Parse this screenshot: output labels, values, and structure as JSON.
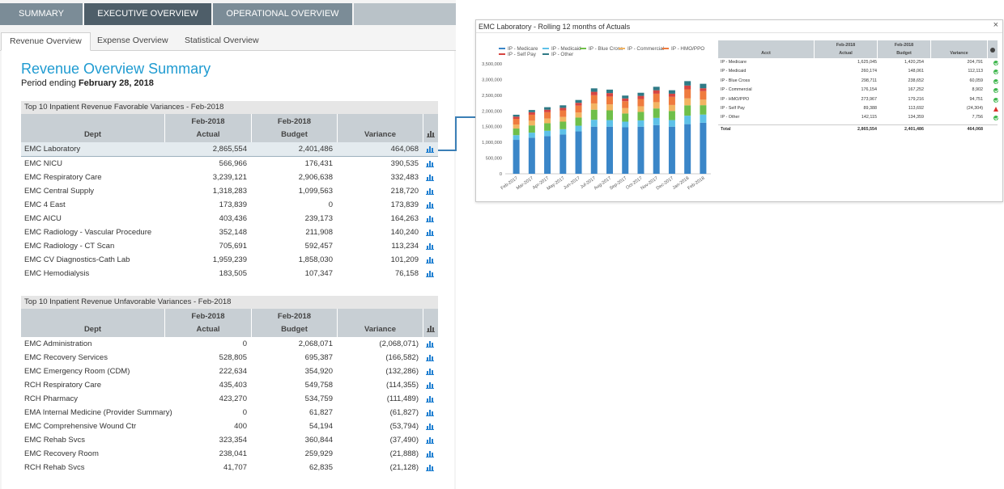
{
  "top_nav": {
    "tabs": [
      "SUMMARY",
      "EXECUTIVE OVERVIEW",
      "OPERATIONAL OVERVIEW",
      ""
    ]
  },
  "sub_nav": {
    "tabs": [
      "Revenue Overview",
      "Expense Overview",
      "Statistical Overview"
    ]
  },
  "summary": {
    "title": "Revenue Overview Summary",
    "period_label": "Period ending",
    "period_value": "February 28, 2018"
  },
  "table_columns": {
    "dept": "Dept",
    "actual_top": "Feb-2018",
    "actual": "Actual",
    "budget_top": "Feb-2018",
    "budget": "Budget",
    "variance": "Variance"
  },
  "favorable": {
    "heading": "Top 10 Inpatient Revenue Favorable Variances - Feb-2018",
    "rows": [
      {
        "dept": "EMC Laboratory",
        "actual": "2,865,554",
        "budget": "2,401,486",
        "variance": "464,068"
      },
      {
        "dept": "EMC NICU",
        "actual": "566,966",
        "budget": "176,431",
        "variance": "390,535"
      },
      {
        "dept": "EMC Respiratory Care",
        "actual": "3,239,121",
        "budget": "2,906,638",
        "variance": "332,483"
      },
      {
        "dept": "EMC Central Supply",
        "actual": "1,318,283",
        "budget": "1,099,563",
        "variance": "218,720"
      },
      {
        "dept": "EMC 4 East",
        "actual": "173,839",
        "budget": "0",
        "variance": "173,839"
      },
      {
        "dept": "EMC AICU",
        "actual": "403,436",
        "budget": "239,173",
        "variance": "164,263"
      },
      {
        "dept": "EMC Radiology - Vascular Procedure",
        "actual": "352,148",
        "budget": "211,908",
        "variance": "140,240"
      },
      {
        "dept": "EMC Radiology - CT Scan",
        "actual": "705,691",
        "budget": "592,457",
        "variance": "113,234"
      },
      {
        "dept": "EMC CV Diagnostics-Cath Lab",
        "actual": "1,959,239",
        "budget": "1,858,030",
        "variance": "101,209"
      },
      {
        "dept": "EMC Hemodialysis",
        "actual": "183,505",
        "budget": "107,347",
        "variance": "76,158"
      }
    ]
  },
  "unfavorable": {
    "heading": "Top 10 Inpatient Revenue Unfavorable Variances - Feb-2018",
    "rows": [
      {
        "dept": "EMC Administration",
        "actual": "0",
        "budget": "2,068,071",
        "variance": "(2,068,071)"
      },
      {
        "dept": "EMC Recovery Services",
        "actual": "528,805",
        "budget": "695,387",
        "variance": "(166,582)"
      },
      {
        "dept": "EMC Emergency Room (CDM)",
        "actual": "222,634",
        "budget": "354,920",
        "variance": "(132,286)"
      },
      {
        "dept": "RCH Respiratory Care",
        "actual": "435,403",
        "budget": "549,758",
        "variance": "(114,355)"
      },
      {
        "dept": "RCH Pharmacy",
        "actual": "423,270",
        "budget": "534,759",
        "variance": "(111,489)"
      },
      {
        "dept": "EMA Internal Medicine (Provider Summary)",
        "actual": "0",
        "budget": "61,827",
        "variance": "(61,827)"
      },
      {
        "dept": "EMC Comprehensive Wound Ctr",
        "actual": "400",
        "budget": "54,194",
        "variance": "(53,794)"
      },
      {
        "dept": "EMC Rehab Svcs",
        "actual": "323,354",
        "budget": "360,844",
        "variance": "(37,490)"
      },
      {
        "dept": "EMC Recovery Room",
        "actual": "238,041",
        "budget": "259,929",
        "variance": "(21,888)"
      },
      {
        "dept": "RCH Rehab Svcs",
        "actual": "41,707",
        "budget": "62,835",
        "variance": "(21,128)"
      }
    ]
  },
  "popup": {
    "title": "EMC Laboratory - Rolling 12 months of Actuals",
    "close": "×",
    "mini_columns": {
      "acct": "Acct",
      "actual_top": "Feb-2018",
      "actual": "Actual",
      "budget_top": "Feb-2018",
      "budget": "Budget",
      "variance": "Variance"
    },
    "mini_rows": [
      {
        "acct": "IP - Medicare",
        "actual": "1,625,045",
        "budget": "1,420,254",
        "variance": "204,791",
        "status": "ok"
      },
      {
        "acct": "IP - Medicaid",
        "actual": "260,174",
        "budget": "148,061",
        "variance": "112,113",
        "status": "ok"
      },
      {
        "acct": "IP - Blue Cross",
        "actual": "298,711",
        "budget": "238,652",
        "variance": "60,059",
        "status": "ok"
      },
      {
        "acct": "IP - Commercial",
        "actual": "176,154",
        "budget": "167,252",
        "variance": "8,902",
        "status": "ok"
      },
      {
        "acct": "IP - HMO/PPO",
        "actual": "273,967",
        "budget": "179,216",
        "variance": "94,751",
        "status": "ok"
      },
      {
        "acct": "IP - Self Pay",
        "actual": "89,388",
        "budget": "113,692",
        "variance": "(24,304)",
        "status": "warn"
      },
      {
        "acct": "IP - Other",
        "actual": "142,115",
        "budget": "134,359",
        "variance": "7,756",
        "status": "ok"
      }
    ],
    "mini_total": {
      "acct": "Total",
      "actual": "2,865,554",
      "budget": "2,401,486",
      "variance": "464,068"
    }
  },
  "chart_data": {
    "type": "bar",
    "stacked": true,
    "title": "",
    "xlabel": "",
    "ylabel": "",
    "ylim": [
      0,
      3500000
    ],
    "yticks": [
      "0",
      "500,000",
      "1,000,000",
      "1,500,000",
      "2,000,000",
      "2,500,000",
      "3,000,000",
      "3,500,000"
    ],
    "legend_position": "top-left",
    "categories": [
      "Feb-2017",
      "Mar-2017",
      "Apr-2017",
      "May-2017",
      "Jun-2017",
      "Jul-2017",
      "Aug-2017",
      "Sep-2017",
      "Oct-2017",
      "Nov-2017",
      "Dec-2017",
      "Jan-2018",
      "Feb-2018"
    ],
    "series": [
      {
        "name": "IP - Medicare",
        "color": "#3a86c8",
        "values": [
          1080000,
          1150000,
          1200000,
          1250000,
          1350000,
          1500000,
          1500000,
          1480000,
          1500000,
          1550000,
          1500000,
          1580000,
          1625045
        ]
      },
      {
        "name": "IP - Medicaid",
        "color": "#5ec1e8",
        "values": [
          150000,
          160000,
          170000,
          170000,
          180000,
          220000,
          210000,
          180000,
          200000,
          230000,
          210000,
          270000,
          260174
        ]
      },
      {
        "name": "IP - Blue Cross",
        "color": "#6fbf4a",
        "values": [
          210000,
          230000,
          240000,
          240000,
          260000,
          320000,
          310000,
          260000,
          270000,
          300000,
          290000,
          330000,
          298711
        ]
      },
      {
        "name": "IP - Commercial",
        "color": "#f2b462",
        "values": [
          130000,
          150000,
          150000,
          150000,
          160000,
          200000,
          190000,
          170000,
          180000,
          200000,
          190000,
          220000,
          176154
        ]
      },
      {
        "name": "IP - HMO/PPO",
        "color": "#ef7b3e",
        "values": [
          180000,
          190000,
          200000,
          210000,
          220000,
          260000,
          250000,
          220000,
          230000,
          270000,
          260000,
          290000,
          273967
        ]
      },
      {
        "name": "IP - Self Pay",
        "color": "#d64541",
        "values": [
          70000,
          80000,
          80000,
          80000,
          90000,
          110000,
          110000,
          90000,
          100000,
          110000,
          100000,
          120000,
          89388
        ]
      },
      {
        "name": "IP - Other",
        "color": "#2f7a86",
        "values": [
          60000,
          70000,
          80000,
          80000,
          90000,
          110000,
          110000,
          90000,
          100000,
          110000,
          110000,
          140000,
          142115
        ]
      }
    ]
  }
}
